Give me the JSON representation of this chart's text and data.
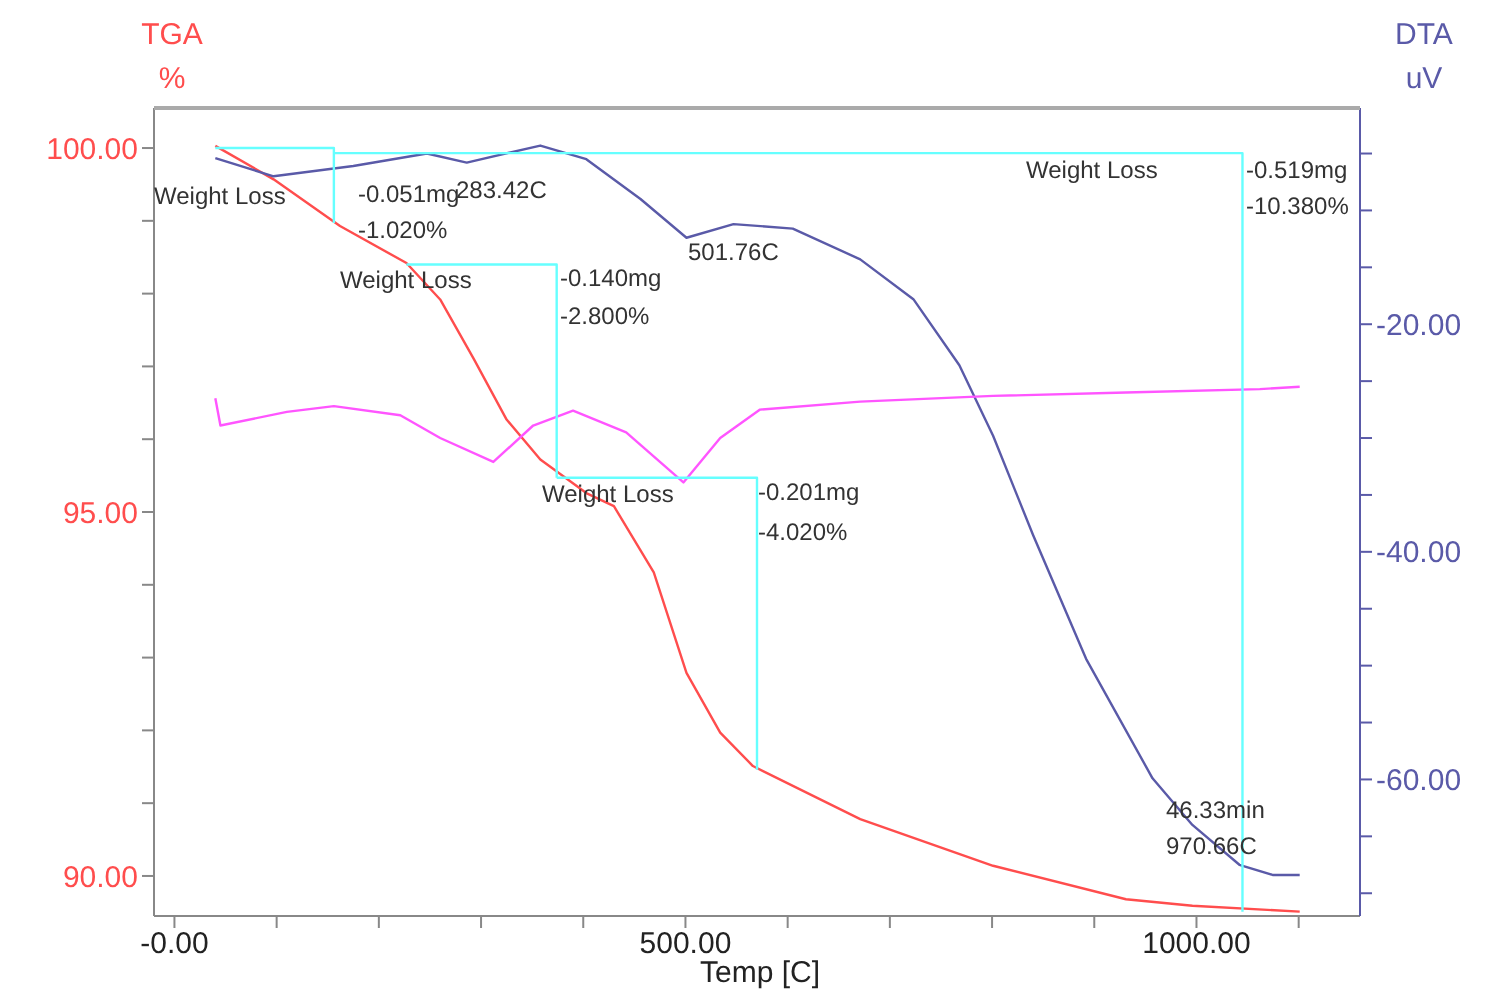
{
  "chart_data": {
    "type": "line",
    "xlabel": "Temp  [C]",
    "ylabel": "TGA\n%",
    "y2label": "DTA\nuV",
    "xlim": [
      -20,
      1160
    ],
    "xticks": [
      {
        "value": 0,
        "label": "-0.00"
      },
      {
        "value": 100,
        "label": null
      },
      {
        "value": 200,
        "label": null
      },
      {
        "value": 300,
        "label": null
      },
      {
        "value": 400,
        "label": null
      },
      {
        "value": 500,
        "label": "500.00"
      },
      {
        "value": 600,
        "label": null
      },
      {
        "value": 700,
        "label": null
      },
      {
        "value": 800,
        "label": null
      },
      {
        "value": 900,
        "label": null
      },
      {
        "value": 1000,
        "label": "1000.00"
      },
      {
        "value": 1100,
        "label": null
      }
    ],
    "ylim": [
      89.45,
      100.55
    ],
    "yticks": [
      {
        "value": 90,
        "label": "90.00"
      },
      {
        "value": 91,
        "label": null
      },
      {
        "value": 92,
        "label": null
      },
      {
        "value": 93,
        "label": null
      },
      {
        "value": 94,
        "label": null
      },
      {
        "value": 95,
        "label": "95.00"
      },
      {
        "value": 96,
        "label": null
      },
      {
        "value": 97,
        "label": null
      },
      {
        "value": 98,
        "label": null
      },
      {
        "value": 99,
        "label": null
      },
      {
        "value": 100,
        "label": "100.00"
      }
    ],
    "y2lim": [
      -72,
      -1
    ],
    "y2ticks": [
      {
        "value": -5,
        "label": null
      },
      {
        "value": -10,
        "label": null
      },
      {
        "value": -15,
        "label": null
      },
      {
        "value": -20,
        "label": "-20.00"
      },
      {
        "value": -25,
        "label": null
      },
      {
        "value": -30,
        "label": null
      },
      {
        "value": -35,
        "label": null
      },
      {
        "value": -40,
        "label": "-40.00"
      },
      {
        "value": -45,
        "label": null
      },
      {
        "value": -50,
        "label": null
      },
      {
        "value": -55,
        "label": null
      },
      {
        "value": -60,
        "label": "-60.00"
      },
      {
        "value": -65,
        "label": null
      },
      {
        "value": -70,
        "label": null
      }
    ],
    "grid": false,
    "legend": false,
    "marker": "none",
    "line_style": "solid",
    "series": [
      {
        "color": "#ff4d4d",
        "axis": "y",
        "x": [
          40,
          97,
          162,
          227,
          260,
          293,
          325,
          358,
          403,
          430,
          469,
          501,
          534,
          566,
          671,
          801,
          931,
          996,
          1101
        ],
        "values": [
          100.03,
          99.57,
          98.93,
          98.42,
          97.92,
          97.1,
          96.27,
          95.72,
          95.26,
          95.08,
          94.17,
          92.79,
          91.97,
          91.51,
          90.78,
          90.14,
          89.68,
          89.59,
          89.51
        ]
      },
      {
        "color": "#5a5aa8",
        "axis": "y2",
        "x": [
          40,
          97,
          175,
          247,
          286,
          358,
          403,
          456,
          501,
          547,
          605,
          671,
          723,
          768,
          801,
          840,
          892,
          957,
          996,
          1042,
          1075,
          1101
        ],
        "values": [
          -5.4,
          -7,
          -6.1,
          -5,
          -5.8,
          -4.3,
          -5.5,
          -9,
          -12.4,
          -11.2,
          -11.6,
          -14.3,
          -17.8,
          -23.6,
          -29.8,
          -38.5,
          -49.4,
          -59.9,
          -64,
          -67.5,
          -68.4,
          -68.4
        ]
      },
      {
        "color": "#ff55ff",
        "axis": "y2",
        "x": [
          40,
          45,
          110,
          156,
          221,
          260,
          312,
          351,
          390,
          442,
          498,
          534,
          573,
          671,
          801,
          931,
          1062,
          1101
        ],
        "values": [
          -26.5,
          -28.9,
          -27.7,
          -27.2,
          -28,
          -30,
          -32.1,
          -28.9,
          -27.6,
          -29.5,
          -33.9,
          -30,
          -27.5,
          -26.8,
          -26.3,
          -26,
          -25.7,
          -25.5
        ]
      },
      {
        "color": "#66ffff",
        "axis": "y",
        "x": [
          40,
          156,
          156
        ],
        "values": [
          100,
          100,
          98.97
        ]
      },
      {
        "color": "#66ffff",
        "axis": "y",
        "x": [
          227,
          374,
          374
        ],
        "values": [
          98.4,
          98.4,
          95.47
        ]
      },
      {
        "color": "#66ffff",
        "axis": "y",
        "x": [
          374,
          570,
          570
        ],
        "values": [
          95.47,
          95.47,
          91.46
        ]
      },
      {
        "color": "#66ffff",
        "axis": "y",
        "x": [
          156,
          1045,
          1045
        ],
        "values": [
          99.93,
          99.93,
          89.51
        ]
      }
    ],
    "annotations": [
      "Weight Loss",
      "-0.051mg",
      "-1.020%",
      "283.42C",
      "Weight Loss",
      "-0.140mg",
      "-2.800%",
      "501.76C",
      "Weight Loss",
      "-0.201mg",
      "-4.020%",
      "Weight Loss",
      "-0.519mg",
      "-10.380%",
      "46.33min",
      "970.66C"
    ]
  }
}
